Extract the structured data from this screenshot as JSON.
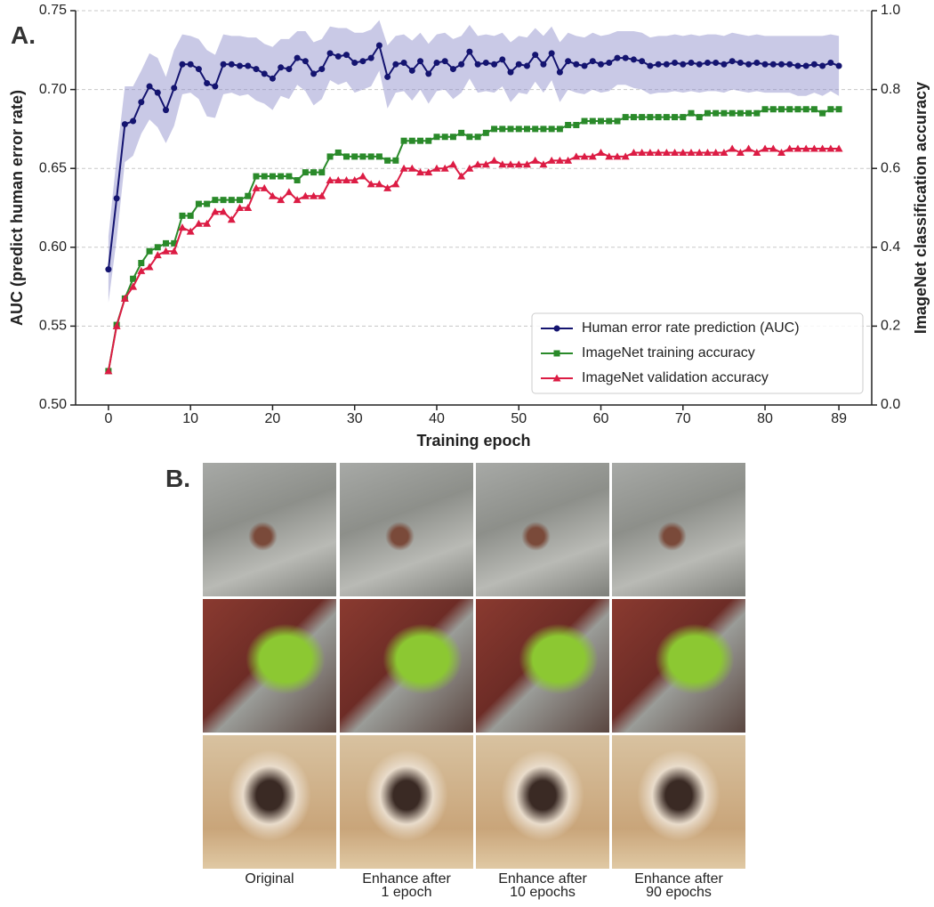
{
  "panel_a": {
    "label": "A."
  },
  "panel_b": {
    "label": "B.",
    "captions": [
      "Original",
      "Enhance after\n1 epoch",
      "Enhance after\n10 epochs",
      "Enhance after\n90 epochs"
    ]
  },
  "chart_data": {
    "type": "line",
    "xlabel": "Training epoch",
    "ylabel": "AUC (predict human error rate)",
    "y2label": "ImageNet classification accuracy",
    "x": [
      0,
      1,
      2,
      3,
      4,
      5,
      6,
      7,
      8,
      9,
      10,
      11,
      12,
      13,
      14,
      15,
      16,
      17,
      18,
      19,
      20,
      21,
      22,
      23,
      24,
      25,
      26,
      27,
      28,
      29,
      30,
      31,
      32,
      33,
      34,
      35,
      36,
      37,
      38,
      39,
      40,
      41,
      42,
      43,
      44,
      45,
      46,
      47,
      48,
      49,
      50,
      51,
      52,
      53,
      54,
      55,
      56,
      57,
      58,
      59,
      60,
      61,
      62,
      63,
      64,
      65,
      66,
      67,
      68,
      69,
      70,
      71,
      72,
      73,
      74,
      75,
      76,
      77,
      78,
      79,
      80,
      81,
      82,
      83,
      84,
      85,
      86,
      87,
      88,
      89
    ],
    "xlim": [
      -4,
      93
    ],
    "xticks": [
      0,
      10,
      20,
      30,
      40,
      50,
      60,
      70,
      80,
      89
    ],
    "ylim": [
      0.5,
      0.75
    ],
    "yticks": [
      {
        "value": 0.5,
        "label": "0.50"
      },
      0.55,
      {
        "value": 0.6,
        "label": "0.60"
      },
      0.65,
      {
        "value": 0.7,
        "label": "0.70"
      },
      0.75
    ],
    "y2lim": [
      0,
      1
    ],
    "y2ticks": [
      {
        "value": 0,
        "label": "0.0"
      },
      0.2,
      0.4,
      0.6,
      0.8,
      {
        "value": 1,
        "label": "1.0"
      }
    ],
    "grid": true,
    "legend": "lower right",
    "series": [
      {
        "name": "Human error rate prediction (AUC)",
        "color": "#141470",
        "marker": "circle",
        "band_color": "#8888c8",
        "values": [
          0.586,
          0.631,
          0.678,
          0.68,
          0.692,
          0.702,
          0.698,
          0.687,
          0.701,
          0.716,
          0.716,
          0.713,
          0.704,
          0.702,
          0.716,
          0.716,
          0.715,
          0.715,
          0.713,
          0.71,
          0.707,
          0.714,
          0.713,
          0.72,
          0.718,
          0.71,
          0.713,
          0.723,
          0.721,
          0.722,
          0.717,
          0.718,
          0.72,
          0.728,
          0.708,
          0.716,
          0.717,
          0.712,
          0.718,
          0.71,
          0.717,
          0.718,
          0.713,
          0.716,
          0.724,
          0.716,
          0.717,
          0.716,
          0.719,
          0.711,
          0.716,
          0.715,
          0.722,
          0.716,
          0.723,
          0.711,
          0.718,
          0.716,
          0.715,
          0.718,
          0.716,
          0.717,
          0.72,
          0.72,
          0.719,
          0.718,
          0.715,
          0.716,
          0.716,
          0.717,
          0.716,
          0.717,
          0.716,
          0.717,
          0.717,
          0.716,
          0.718,
          0.717,
          0.716,
          0.717,
          0.716,
          0.716,
          0.716,
          0.716,
          0.715,
          0.715,
          0.716,
          0.715,
          0.717,
          0.715
        ],
        "error": [
          0.021,
          0.026,
          0.024,
          0.022,
          0.02,
          0.021,
          0.022,
          0.021,
          0.024,
          0.019,
          0.018,
          0.019,
          0.021,
          0.02,
          0.019,
          0.018,
          0.019,
          0.018,
          0.02,
          0.019,
          0.02,
          0.018,
          0.019,
          0.017,
          0.019,
          0.02,
          0.019,
          0.017,
          0.018,
          0.017,
          0.019,
          0.018,
          0.018,
          0.016,
          0.02,
          0.018,
          0.018,
          0.019,
          0.018,
          0.019,
          0.018,
          0.018,
          0.019,
          0.018,
          0.017,
          0.018,
          0.018,
          0.018,
          0.017,
          0.019,
          0.018,
          0.018,
          0.017,
          0.018,
          0.017,
          0.019,
          0.018,
          0.018,
          0.018,
          0.018,
          0.018,
          0.018,
          0.017,
          0.017,
          0.018,
          0.018,
          0.018,
          0.018,
          0.018,
          0.018,
          0.018,
          0.018,
          0.018,
          0.018,
          0.018,
          0.018,
          0.018,
          0.018,
          0.018,
          0.018,
          0.018,
          0.018,
          0.018,
          0.018,
          0.019,
          0.019,
          0.018,
          0.019,
          0.018,
          0.019
        ]
      },
      {
        "name": "ImageNet training accuracy",
        "color": "#2a8a2a",
        "marker": "square",
        "axis": "y2",
        "values": [
          0.086,
          0.203,
          0.27,
          0.32,
          0.36,
          0.39,
          0.4,
          0.41,
          0.41,
          0.48,
          0.48,
          0.51,
          0.51,
          0.52,
          0.52,
          0.52,
          0.52,
          0.53,
          0.58,
          0.58,
          0.58,
          0.58,
          0.58,
          0.57,
          0.59,
          0.59,
          0.59,
          0.63,
          0.64,
          0.63,
          0.63,
          0.63,
          0.63,
          0.63,
          0.62,
          0.62,
          0.67,
          0.67,
          0.67,
          0.67,
          0.68,
          0.68,
          0.68,
          0.69,
          0.68,
          0.68,
          0.69,
          0.7,
          0.7,
          0.7,
          0.7,
          0.7,
          0.7,
          0.7,
          0.7,
          0.7,
          0.71,
          0.71,
          0.72,
          0.72,
          0.72,
          0.72,
          0.72,
          0.73,
          0.73,
          0.73,
          0.73,
          0.73,
          0.73,
          0.73,
          0.73,
          0.74,
          0.73,
          0.74,
          0.74,
          0.74,
          0.74,
          0.74,
          0.74,
          0.74,
          0.75,
          0.75,
          0.75,
          0.75,
          0.75,
          0.75,
          0.75,
          0.74,
          0.75,
          0.75
        ]
      },
      {
        "name": "ImageNet validation accuracy",
        "color": "#dc1c44",
        "marker": "triangle",
        "axis": "y2",
        "values": [
          0.086,
          0.2,
          0.27,
          0.3,
          0.34,
          0.35,
          0.38,
          0.39,
          0.39,
          0.45,
          0.44,
          0.46,
          0.46,
          0.49,
          0.49,
          0.47,
          0.5,
          0.5,
          0.55,
          0.55,
          0.53,
          0.52,
          0.54,
          0.52,
          0.53,
          0.53,
          0.53,
          0.57,
          0.57,
          0.57,
          0.57,
          0.58,
          0.56,
          0.56,
          0.55,
          0.56,
          0.6,
          0.6,
          0.59,
          0.59,
          0.6,
          0.6,
          0.61,
          0.58,
          0.6,
          0.61,
          0.61,
          0.62,
          0.61,
          0.61,
          0.61,
          0.61,
          0.62,
          0.61,
          0.62,
          0.62,
          0.62,
          0.63,
          0.63,
          0.63,
          0.64,
          0.63,
          0.63,
          0.63,
          0.64,
          0.64,
          0.64,
          0.64,
          0.64,
          0.64,
          0.64,
          0.64,
          0.64,
          0.64,
          0.64,
          0.64,
          0.65,
          0.64,
          0.65,
          0.64,
          0.65,
          0.65,
          0.64,
          0.65,
          0.65,
          0.65,
          0.65,
          0.65,
          0.65,
          0.65
        ]
      }
    ]
  }
}
